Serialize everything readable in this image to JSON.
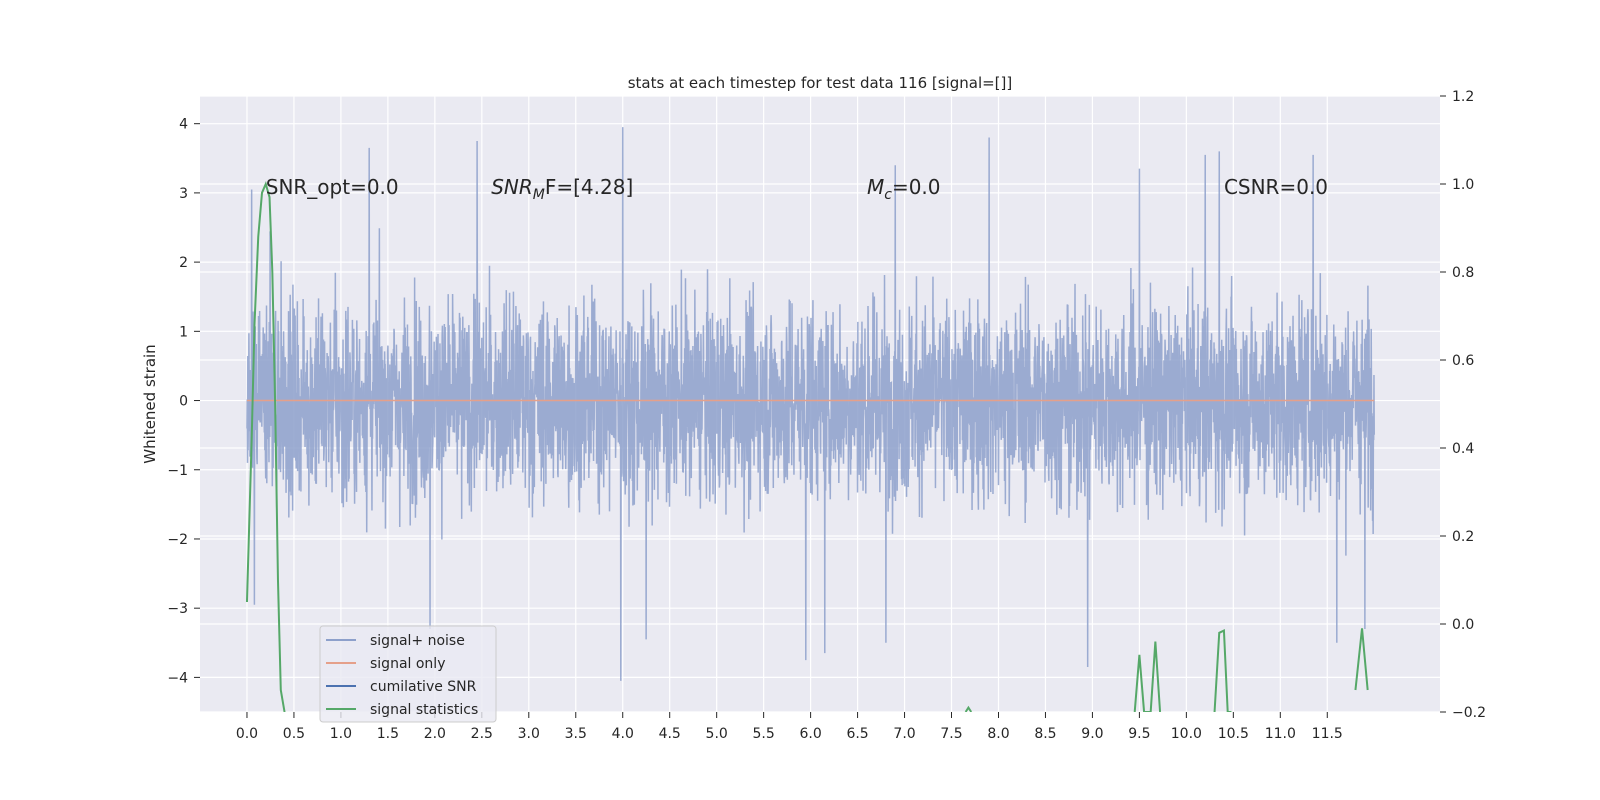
{
  "chart_data": {
    "type": "line",
    "title": "stats at each timestep for test data 116 [signal=[]]",
    "ylabel": "Whitened strain",
    "xlabel": "",
    "xlim": [
      -0.5,
      12.7
    ],
    "ylim": [
      -4.5,
      4.4
    ],
    "y2lim": [
      -0.2,
      1.2
    ],
    "x_ticks": [
      "0.0",
      "0.5",
      "1.0",
      "1.5",
      "2.0",
      "2.5",
      "3.0",
      "3.5",
      "4.0",
      "4.5",
      "5.0",
      "5.5",
      "6.0",
      "6.5",
      "7.0",
      "7.5",
      "8.0",
      "8.5",
      "9.0",
      "9.5",
      "10.0",
      "10.5",
      "11.0",
      "11.5"
    ],
    "y_ticks": [
      4,
      3,
      2,
      1,
      0,
      -1,
      -2,
      -3,
      -4
    ],
    "y2_ticks": [
      "1.2",
      "1.0",
      "0.8",
      "0.6",
      "0.4",
      "0.2",
      "0.0",
      "−0.2"
    ],
    "grid": true,
    "legend_position": "lower-left",
    "annotations": [
      {
        "text": "SNR_opt=0.0",
        "x": 0.2,
        "y": 3.1
      },
      {
        "text": "SNR",
        "sub": "M",
        "rest": "F=[4.28]",
        "italic": true,
        "x": 2.6,
        "y": 3.1
      },
      {
        "text": "M",
        "sub": "c",
        "rest": "=0.0",
        "italic": true,
        "x": 6.6,
        "y": 3.1
      },
      {
        "text": "CSNR=0.0",
        "x": 10.4,
        "y": 3.1
      }
    ],
    "series": [
      {
        "name": "signal+ noise",
        "color": "#8da0cb",
        "x_range": [
          0.0,
          12.0
        ],
        "description_values": {
          "typical_abs_max": 2.0,
          "envelope_max": 3.95,
          "envelope_min": -4.05
        },
        "peaks": [
          {
            "x": 0.05,
            "y": 3.05
          },
          {
            "x": 0.08,
            "y": -2.95
          },
          {
            "x": 1.3,
            "y": 3.65
          },
          {
            "x": 2.45,
            "y": 3.75
          },
          {
            "x": 4.0,
            "y": 3.95
          },
          {
            "x": 3.98,
            "y": -4.05
          },
          {
            "x": 4.25,
            "y": -3.45
          },
          {
            "x": 6.9,
            "y": 3.4
          },
          {
            "x": 7.9,
            "y": 3.8
          },
          {
            "x": 8.95,
            "y": -3.85
          },
          {
            "x": 9.5,
            "y": 3.35
          },
          {
            "x": 10.2,
            "y": 3.55
          },
          {
            "x": 10.35,
            "y": 3.6
          },
          {
            "x": 11.35,
            "y": 3.55
          },
          {
            "x": 11.6,
            "y": -3.5
          },
          {
            "x": 11.9,
            "y": -3.3
          },
          {
            "x": 6.8,
            "y": -3.5
          },
          {
            "x": 5.95,
            "y": -3.75
          },
          {
            "x": 6.15,
            "y": -3.65
          },
          {
            "x": 1.95,
            "y": -3.3
          }
        ]
      },
      {
        "name": "signal only",
        "color": "#e5a08a",
        "x": [
          0.0,
          12.0
        ],
        "y": [
          0.0,
          0.0
        ]
      },
      {
        "name": "cumilative SNR",
        "color": "#4c72b0",
        "x": [],
        "y": []
      },
      {
        "name": "signal statistics",
        "color": "#55a868",
        "axis": "right",
        "x": [
          0.0,
          0.05,
          0.08,
          0.12,
          0.16,
          0.2,
          0.24,
          0.27,
          0.3,
          0.33,
          0.36,
          0.4,
          7.65,
          7.68,
          7.71,
          9.45,
          9.5,
          9.55,
          9.62,
          9.67,
          9.72,
          10.3,
          10.35,
          10.4,
          10.44,
          10.48,
          11.8,
          11.87,
          11.93
        ],
        "y": [
          0.05,
          0.42,
          0.68,
          0.88,
          0.98,
          1.0,
          0.97,
          0.8,
          0.5,
          0.1,
          -0.15,
          -0.2,
          -0.2,
          -0.19,
          -0.2,
          -0.2,
          -0.07,
          -0.2,
          -0.2,
          -0.04,
          -0.2,
          -0.2,
          -0.02,
          -0.015,
          -0.2,
          -0.2,
          -0.15,
          -0.01,
          -0.15
        ]
      }
    ]
  }
}
